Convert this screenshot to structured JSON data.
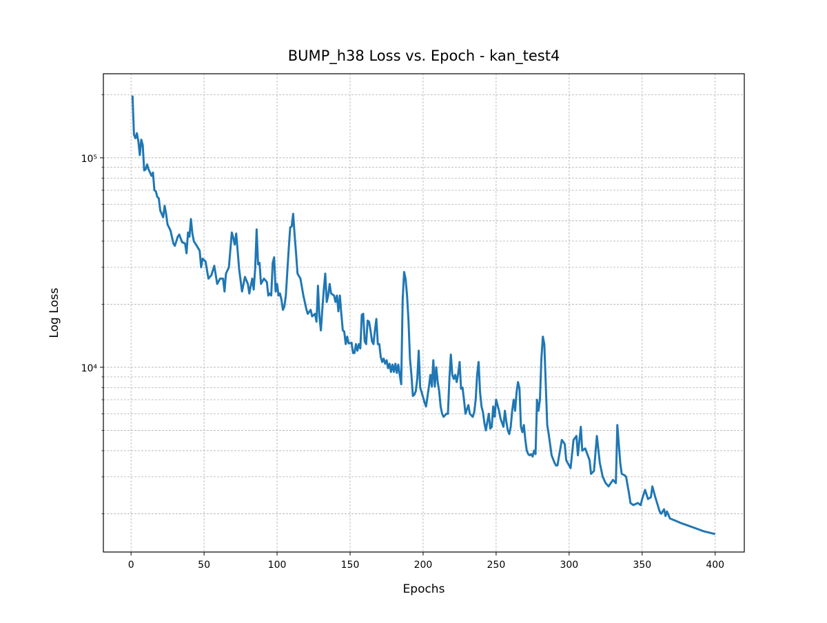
{
  "chart_data": {
    "type": "line",
    "title": "BUMP_h38 Loss vs. Epoch - kan_test4",
    "xlabel": "Epochs",
    "ylabel": "Log Loss",
    "color": "#1f77b4",
    "yscale": "log",
    "grid": true,
    "xlim": [
      -18.95,
      419.95
    ],
    "xticks": [
      0,
      50,
      100,
      150,
      200,
      250,
      300,
      350,
      400
    ],
    "ylim": [
      1313,
      251800
    ],
    "yticks": [
      {
        "value": 10000,
        "label": "10⁴"
      },
      {
        "value": 100000,
        "label": "10⁵"
      }
    ],
    "yminorticks": [
      2000,
      3000,
      4000,
      5000,
      6000,
      7000,
      8000,
      9000,
      20000,
      30000,
      40000,
      50000,
      60000,
      70000,
      80000,
      90000,
      200000
    ],
    "x": [
      1,
      2,
      3,
      4,
      5,
      6,
      7,
      8,
      9,
      10,
      11,
      12,
      13,
      14,
      15,
      16,
      17,
      18,
      19,
      20,
      22,
      23,
      24,
      25,
      27,
      29,
      30,
      32,
      33,
      35,
      37,
      38,
      39,
      40,
      41,
      42,
      43,
      45,
      47,
      48,
      49,
      51,
      53,
      55,
      57,
      59,
      61,
      63,
      64,
      65,
      67,
      69,
      70,
      71,
      72,
      73,
      74,
      76,
      78,
      80,
      81,
      82,
      83,
      84,
      85,
      86,
      87,
      88,
      89,
      91,
      93,
      94,
      95,
      96,
      97,
      98,
      99,
      100,
      101,
      102,
      103,
      104,
      105,
      106,
      107,
      108,
      109,
      110,
      111,
      112,
      113,
      114,
      116,
      118,
      120,
      121,
      123,
      124,
      126,
      127,
      128,
      129,
      130,
      131,
      132,
      133,
      134,
      135,
      136,
      137,
      139,
      140,
      141,
      142,
      143,
      144,
      145,
      146,
      147,
      148,
      149,
      151,
      152,
      153,
      154,
      155,
      156,
      157,
      158,
      159,
      160,
      161,
      162,
      163,
      164,
      165,
      166,
      167,
      168,
      169,
      170,
      171,
      172,
      173,
      174,
      175,
      176,
      177,
      178,
      179,
      180,
      181,
      182,
      183,
      184,
      185,
      186,
      187,
      188,
      189,
      190,
      191,
      192,
      193,
      194,
      195,
      196,
      197,
      198,
      199,
      201,
      202,
      204,
      205,
      206,
      207,
      208,
      209,
      210,
      211,
      212,
      213,
      214,
      216,
      217,
      218,
      219,
      220,
      221,
      222,
      223,
      224,
      225,
      226,
      227,
      228,
      229,
      230,
      231,
      232,
      234,
      235,
      236,
      237,
      238,
      239,
      240,
      241,
      242,
      243,
      244,
      245,
      246,
      247,
      248,
      249,
      250,
      252,
      253,
      255,
      256,
      257,
      258,
      259,
      260,
      261,
      262,
      263,
      264,
      265,
      266,
      267,
      268,
      269,
      270,
      271,
      272,
      273,
      274,
      275,
      276,
      277,
      278,
      279,
      280,
      281,
      282,
      283,
      285,
      286,
      288,
      290,
      291,
      292,
      295,
      297,
      298,
      301,
      303,
      305,
      306,
      308,
      309,
      311,
      314,
      315,
      317,
      319,
      321,
      323,
      325,
      327,
      330,
      332,
      333,
      335,
      336,
      338,
      339,
      341,
      342,
      344,
      347,
      349,
      350,
      352,
      354,
      356,
      357,
      359,
      362,
      363,
      365,
      366,
      367,
      369,
      373,
      377,
      382,
      387,
      392,
      400
    ],
    "values": [
      198000,
      129000,
      124000,
      131000,
      120000,
      103000,
      122000,
      115000,
      87000,
      88000,
      93000,
      88000,
      85000,
      82000,
      85000,
      70000,
      69000,
      65000,
      64000,
      56000,
      52000,
      59000,
      54000,
      48000,
      45000,
      39000,
      38000,
      42000,
      43000,
      39500,
      39000,
      35000,
      44000,
      42000,
      51000,
      43500,
      40000,
      38000,
      36000,
      30000,
      33000,
      32000,
      26500,
      27500,
      30500,
      25000,
      26500,
      26500,
      23000,
      28000,
      30000,
      44000,
      41500,
      38500,
      43500,
      36000,
      29500,
      23000,
      27000,
      25000,
      22500,
      24500,
      26500,
      23500,
      29500,
      45500,
      31000,
      31500,
      25000,
      26500,
      25500,
      22000,
      22500,
      22000,
      31500,
      33500,
      23000,
      25000,
      22000,
      22500,
      21000,
      18800,
      19500,
      22000,
      28500,
      37000,
      46500,
      47000,
      54000,
      43000,
      35000,
      28000,
      26500,
      22000,
      19000,
      18000,
      18800,
      17500,
      18000,
      16500,
      24500,
      17500,
      15000,
      19000,
      23500,
      28000,
      20500,
      22000,
      25000,
      22500,
      22000,
      20500,
      22000,
      18500,
      22000,
      18000,
      15000,
      14800,
      12900,
      14000,
      13000,
      13100,
      11700,
      11700,
      12900,
      12000,
      12900,
      12300,
      17800,
      18000,
      13300,
      12900,
      16700,
      16500,
      15000,
      13300,
      12900,
      15000,
      17000,
      12900,
      12900,
      11200,
      10600,
      11000,
      10400,
      10800,
      9900,
      10400,
      9500,
      10300,
      9500,
      10400,
      9400,
      10300,
      9200,
      8300,
      21000,
      28500,
      26500,
      22000,
      16700,
      11000,
      9200,
      7300,
      7400,
      7700,
      8800,
      12000,
      8000,
      7600,
      6800,
      6500,
      8100,
      9200,
      8100,
      10800,
      8100,
      10000,
      8500,
      7700,
      6500,
      6000,
      5800,
      6000,
      6000,
      8800,
      11500,
      9200,
      8800,
      9200,
      8500,
      9300,
      10600,
      7900,
      8000,
      7000,
      6000,
      6300,
      6600,
      6000,
      5800,
      6100,
      7000,
      9200,
      10600,
      7600,
      6500,
      6100,
      5400,
      5000,
      5500,
      6000,
      5100,
      5200,
      6500,
      5800,
      7000,
      6200,
      5700,
      5200,
      6200,
      5500,
      5000,
      4800,
      5200,
      6200,
      7000,
      6200,
      7600,
      8500,
      7900,
      5200,
      4900,
      5300,
      4500,
      4000,
      3850,
      3800,
      3850,
      3750,
      4000,
      3850,
      7000,
      6200,
      7000,
      11000,
      14000,
      12900,
      5300,
      4800,
      3800,
      3500,
      3400,
      3400,
      4500,
      4300,
      3600,
      3300,
      4500,
      4700,
      3800,
      5200,
      4000,
      4100,
      3600,
      3100,
      3200,
      4700,
      3500,
      3000,
      2800,
      2700,
      2900,
      2800,
      5300,
      3500,
      3100,
      3050,
      3000,
      2500,
      2250,
      2200,
      2250,
      2200,
      2350,
      2600,
      2350,
      2400,
      2700,
      2400,
      2050,
      2000,
      2100,
      1950,
      2050,
      1900,
      1850,
      1800,
      1750,
      1700,
      1650,
      1600
    ]
  }
}
